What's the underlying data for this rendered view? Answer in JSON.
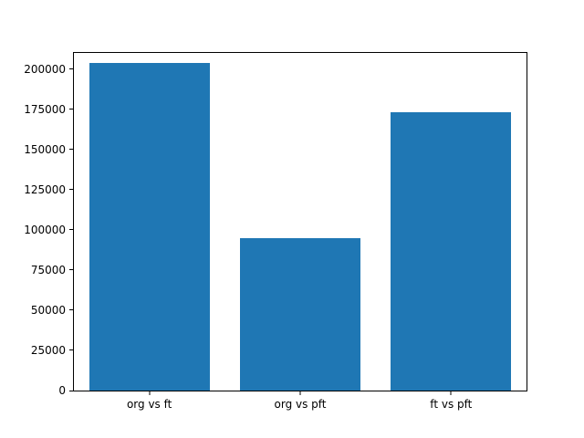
{
  "chart_data": {
    "type": "bar",
    "categories": [
      "org vs ft",
      "org vs pft",
      "ft vs pft"
    ],
    "values": [
      204000,
      95000,
      173000
    ],
    "title": "",
    "xlabel": "",
    "ylabel": "",
    "ylim": [
      0,
      210000
    ],
    "yticks": [
      0,
      25000,
      50000,
      75000,
      100000,
      125000,
      150000,
      175000,
      200000
    ],
    "bar_color": "#1f77b4",
    "grid": false,
    "legend_position": "none"
  }
}
